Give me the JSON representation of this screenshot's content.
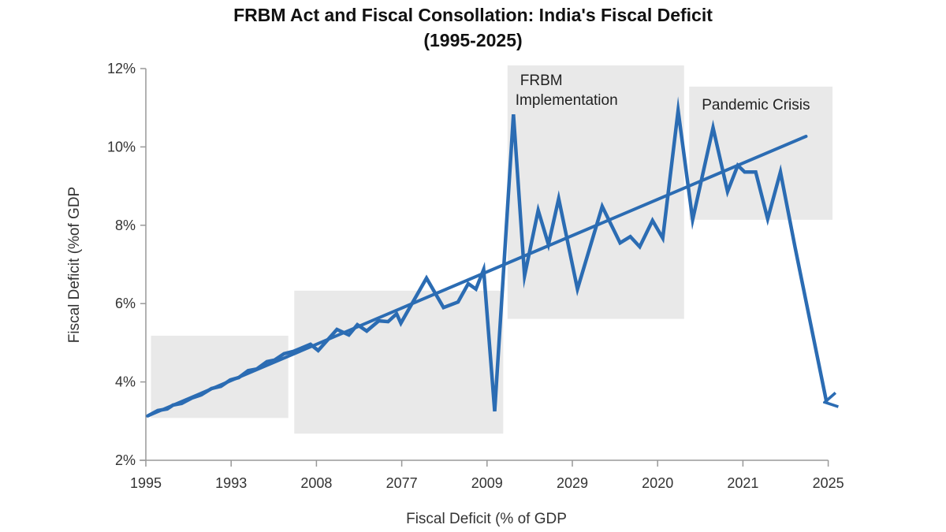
{
  "chart_data": {
    "type": "line",
    "title_line1": "FRBM Act and Fiscal Consollation: India's Fiscal Deficit",
    "title_line2": "(1995-2025)",
    "xlabel": "Fiscal Deficit (% of GDP",
    "ylabel": "Fiscal Deficit (%of GDP",
    "x_tick_labels": [
      "1995",
      "1993",
      "2008",
      "2077",
      "2009",
      "2029",
      "2020",
      "2021",
      "2025"
    ],
    "y_ticks": [
      2,
      4,
      6,
      8,
      10,
      12
    ],
    "y_tick_labels": [
      "2%",
      "4%",
      "6%",
      "8%",
      "10%",
      "12%"
    ],
    "ylim": [
      2,
      12
    ],
    "xlim": [
      0,
      8
    ],
    "grid": false,
    "line_color": "#2b6cb3",
    "shade_color": "#e9e9e9",
    "series": [
      {
        "x": [
          0.02,
          0.14,
          0.25,
          0.32,
          0.42,
          0.54,
          0.65,
          0.77,
          0.88,
          0.99,
          1.09,
          1.2,
          1.3,
          1.42,
          1.51,
          1.62,
          1.73,
          1.93,
          2.02,
          2.24,
          2.38,
          2.48,
          2.59,
          2.73,
          2.84,
          2.94,
          2.99,
          3.29,
          3.49,
          3.66,
          3.78,
          3.87,
          3.96,
          4.09,
          4.31,
          4.44,
          4.6,
          4.72,
          4.84,
          5.06,
          5.35,
          5.56,
          5.68,
          5.79,
          5.94,
          6.06,
          6.24,
          6.41,
          6.65,
          6.82,
          6.94,
          7.02,
          7.15,
          7.29,
          7.44,
          7.61,
          7.98
        ],
        "y": [
          3.13,
          3.27,
          3.31,
          3.41,
          3.45,
          3.59,
          3.67,
          3.83,
          3.89,
          4.05,
          4.11,
          4.29,
          4.33,
          4.52,
          4.56,
          4.72,
          4.78,
          4.96,
          4.8,
          5.34,
          5.2,
          5.46,
          5.3,
          5.56,
          5.54,
          5.74,
          5.5,
          6.65,
          5.9,
          6.04,
          6.51,
          6.37,
          6.87,
          3.25,
          10.83,
          6.71,
          8.38,
          7.51,
          8.68,
          6.37,
          8.48,
          7.55,
          7.71,
          7.45,
          8.12,
          7.67,
          10.93,
          8.14,
          10.49,
          8.86,
          9.53,
          9.36,
          9.36,
          8.16,
          9.36,
          7.45,
          3.49
        ]
      }
    ],
    "trend_line": {
      "x": [
        0.02,
        7.74
      ],
      "y": [
        3.13,
        10.27
      ]
    },
    "shaded_regions": [
      {
        "x": [
          0.06,
          1.67
        ],
        "y": [
          3.08,
          5.18
        ],
        "label": ""
      },
      {
        "x": [
          1.74,
          4.19
        ],
        "y": [
          2.68,
          6.33
        ],
        "label": ""
      },
      {
        "x": [
          4.24,
          6.31
        ],
        "y": [
          5.61,
          12.08
        ],
        "label_line1": "FRBM",
        "label_line2": "Implementation"
      },
      {
        "x": [
          6.37,
          8.05
        ],
        "y": [
          8.14,
          11.54
        ],
        "label_line1": "Pandemic Crisis",
        "label_line2": ""
      }
    ]
  }
}
